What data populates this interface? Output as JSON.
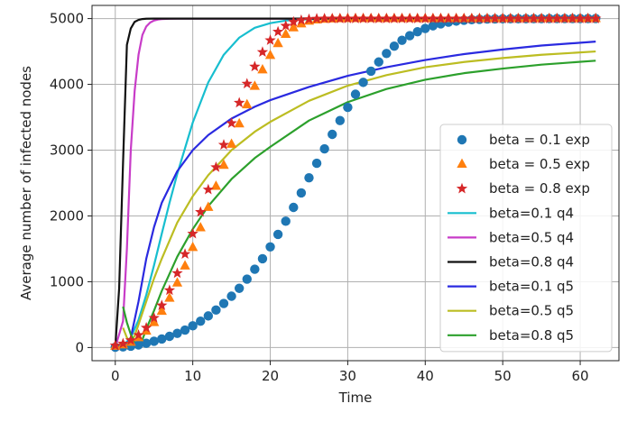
{
  "chart_data": {
    "type": "line",
    "title": "",
    "xlabel": "Time",
    "ylabel": "Average number of infected nodes",
    "xlim": [
      -3,
      65
    ],
    "ylim": [
      -200,
      5200
    ],
    "xticks": [
      "0",
      "10",
      "20",
      "30",
      "40",
      "50",
      "60"
    ],
    "yticks": [
      "0",
      "1000",
      "2000",
      "3000",
      "4000",
      "5000"
    ],
    "grid": true,
    "legend_position": "lower-right",
    "series": [
      {
        "name": "beta = 0.1 exp",
        "kind": "marker",
        "marker": "circle",
        "color": "#1f77b4",
        "x": [
          0,
          1,
          2,
          3,
          4,
          5,
          6,
          7,
          8,
          9,
          10,
          11,
          12,
          13,
          14,
          15,
          16,
          17,
          18,
          19,
          20,
          21,
          22,
          23,
          24,
          25,
          26,
          27,
          28,
          29,
          30,
          31,
          32,
          33,
          34,
          35,
          36,
          37,
          38,
          39,
          40,
          41,
          42,
          43,
          44,
          45,
          46,
          47,
          48,
          49,
          50,
          51,
          52,
          53,
          54,
          55,
          56,
          57,
          58,
          59,
          60,
          61,
          62
        ],
        "y": [
          5,
          10,
          20,
          40,
          65,
          95,
          130,
          170,
          215,
          265,
          330,
          400,
          480,
          570,
          670,
          780,
          900,
          1040,
          1190,
          1350,
          1530,
          1720,
          1920,
          2130,
          2350,
          2580,
          2800,
          3020,
          3240,
          3450,
          3650,
          3850,
          4030,
          4200,
          4340,
          4470,
          4580,
          4670,
          4740,
          4800,
          4850,
          4890,
          4920,
          4945,
          4962,
          4975,
          4983,
          4989,
          4993,
          4995,
          4996,
          4997,
          4998,
          4998,
          4999,
          4999,
          5000,
          5000,
          5000,
          5000,
          5000,
          5000,
          5000
        ]
      },
      {
        "name": "beta = 0.5 exp",
        "kind": "marker",
        "marker": "triangle",
        "color": "#ff7f0e",
        "x": [
          0,
          1,
          2,
          3,
          4,
          5,
          6,
          7,
          8,
          9,
          10,
          11,
          12,
          13,
          14,
          15,
          16,
          17,
          18,
          19,
          20,
          21,
          22,
          23,
          24,
          25,
          26,
          27,
          28,
          29,
          30,
          31,
          32,
          33,
          34,
          35,
          36,
          37,
          38,
          39,
          40,
          41,
          42,
          43,
          44,
          45,
          46,
          47,
          48,
          49,
          50,
          51,
          52,
          53,
          54,
          55,
          56,
          57,
          58,
          59,
          60,
          61,
          62
        ],
        "y": [
          20,
          40,
          80,
          150,
          250,
          380,
          550,
          750,
          980,
          1240,
          1520,
          1820,
          2130,
          2450,
          2770,
          3090,
          3400,
          3690,
          3970,
          4220,
          4440,
          4620,
          4760,
          4860,
          4920,
          4960,
          4980,
          4990,
          4995,
          4998,
          5000,
          5000,
          5000,
          5000,
          5000,
          5000,
          5000,
          5000,
          5000,
          5000,
          5000,
          5000,
          5000,
          5000,
          5000,
          5000,
          5000,
          5000,
          5000,
          5000,
          5000,
          5000,
          5000,
          5000,
          5000,
          5000,
          5000,
          5000,
          5000,
          5000,
          5000,
          5000,
          5000
        ]
      },
      {
        "name": "beta = 0.8 exp",
        "kind": "marker",
        "marker": "star",
        "color": "#d62728",
        "x": [
          0,
          1,
          2,
          3,
          4,
          5,
          6,
          7,
          8,
          9,
          10,
          11,
          12,
          13,
          14,
          15,
          16,
          17,
          18,
          19,
          20,
          21,
          22,
          23,
          24,
          25,
          26,
          27,
          28,
          29,
          30,
          31,
          32,
          33,
          34,
          35,
          36,
          37,
          38,
          39,
          40,
          41,
          42,
          43,
          44,
          45,
          46,
          47,
          48,
          49,
          50,
          51,
          52,
          53,
          54,
          55,
          56,
          57,
          58,
          59,
          60,
          61,
          62
        ],
        "y": [
          30,
          60,
          110,
          190,
          300,
          450,
          640,
          870,
          1130,
          1420,
          1730,
          2060,
          2400,
          2740,
          3080,
          3410,
          3720,
          4010,
          4270,
          4490,
          4670,
          4800,
          4890,
          4950,
          4975,
          4990,
          4997,
          5000,
          5000,
          5000,
          5000,
          5000,
          5000,
          5000,
          5000,
          5000,
          5000,
          5000,
          5000,
          5000,
          5000,
          5000,
          5000,
          5000,
          5000,
          5000,
          5000,
          5000,
          5000,
          5000,
          5000,
          5000,
          5000,
          5000,
          5000,
          5000,
          5000,
          5000,
          5000,
          5000,
          5000,
          5000,
          5000
        ]
      },
      {
        "name": "beta=0.1 q4",
        "kind": "line",
        "color": "#17becf",
        "x": [
          0,
          1,
          2,
          3,
          4,
          5,
          6,
          7,
          8,
          10,
          12,
          14,
          16,
          18,
          20,
          22,
          24,
          26,
          28,
          30,
          35,
          40,
          50,
          62
        ],
        "y": [
          0,
          30,
          150,
          420,
          800,
          1250,
          1730,
          2200,
          2640,
          3420,
          4030,
          4450,
          4710,
          4860,
          4930,
          4970,
          4985,
          4993,
          4997,
          5000,
          5000,
          5000,
          5000,
          5000
        ]
      },
      {
        "name": "beta=0.5 q4",
        "kind": "line",
        "color": "#c83cc8",
        "x": [
          0,
          1,
          1.5,
          2,
          2.5,
          3,
          3.5,
          4,
          4.5,
          5,
          5.5,
          6,
          7,
          8,
          10,
          62
        ],
        "y": [
          0,
          400,
          1500,
          3000,
          3900,
          4450,
          4750,
          4880,
          4940,
          4970,
          4985,
          4993,
          4998,
          5000,
          5000,
          5000
        ]
      },
      {
        "name": "beta=0.8 q4",
        "kind": "line",
        "color": "#111111",
        "x": [
          0,
          0.5,
          1,
          1.5,
          2,
          2.5,
          3,
          3.5,
          4,
          5,
          62
        ],
        "y": [
          0,
          900,
          2800,
          4600,
          4850,
          4950,
          4980,
          4993,
          4998,
          5000,
          5000
        ]
      },
      {
        "name": "beta=0.1 q5",
        "kind": "line",
        "color": "#2a2ae0",
        "x": [
          1,
          1.5,
          2,
          3,
          4,
          5,
          6,
          8,
          10,
          12,
          15,
          18,
          20,
          25,
          30,
          35,
          40,
          45,
          50,
          55,
          62
        ],
        "y": [
          0,
          50,
          150,
          700,
          1350,
          1830,
          2200,
          2680,
          3000,
          3230,
          3480,
          3660,
          3760,
          3960,
          4130,
          4260,
          4370,
          4460,
          4530,
          4590,
          4650
        ]
      },
      {
        "name": "beta=0.5 q5",
        "kind": "line",
        "color": "#bcbd22",
        "x": [
          1,
          1.5,
          2,
          2.5,
          3,
          4,
          5,
          6,
          8,
          10,
          12,
          15,
          18,
          20,
          25,
          30,
          35,
          40,
          45,
          50,
          55,
          62
        ],
        "y": [
          300,
          150,
          80,
          180,
          350,
          700,
          1050,
          1350,
          1900,
          2300,
          2620,
          3000,
          3280,
          3430,
          3750,
          3980,
          4140,
          4260,
          4340,
          4400,
          4450,
          4500
        ]
      },
      {
        "name": "beta=0.8 q5",
        "kind": "line",
        "color": "#2ca02c",
        "x": [
          1,
          1.5,
          2,
          2.5,
          3,
          3.5,
          4,
          5,
          6,
          8,
          10,
          12,
          15,
          18,
          20,
          25,
          30,
          35,
          40,
          45,
          50,
          55,
          62
        ],
        "y": [
          620,
          380,
          200,
          80,
          40,
          120,
          280,
          560,
          860,
          1380,
          1800,
          2150,
          2560,
          2880,
          3050,
          3450,
          3730,
          3930,
          4070,
          4170,
          4240,
          4300,
          4360
        ]
      }
    ]
  }
}
